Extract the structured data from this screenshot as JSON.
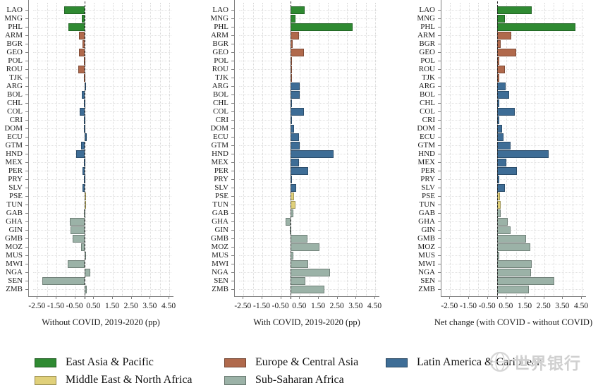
{
  "countries": [
    "LAO",
    "MNG",
    "PHL",
    "ARM",
    "BGR",
    "GEO",
    "POL",
    "ROU",
    "TJK",
    "ARG",
    "BOL",
    "CHL",
    "COL",
    "CRI",
    "DOM",
    "ECU",
    "GTM",
    "HND",
    "MEX",
    "PER",
    "PRY",
    "SLV",
    "PSE",
    "TUN",
    "GAB",
    "GHA",
    "GIN",
    "GMB",
    "MOZ",
    "MUS",
    "MWI",
    "NGA",
    "SEN",
    "ZMB"
  ],
  "country_regions": {
    "LAO": "eap",
    "MNG": "eap",
    "PHL": "eap",
    "ARM": "eca",
    "BGR": "eca",
    "GEO": "eca",
    "POL": "eca",
    "ROU": "eca",
    "TJK": "eca",
    "ARG": "lac",
    "BOL": "lac",
    "CHL": "lac",
    "COL": "lac",
    "CRI": "lac",
    "DOM": "lac",
    "ECU": "lac",
    "GTM": "lac",
    "HND": "lac",
    "MEX": "lac",
    "PER": "lac",
    "PRY": "lac",
    "SLV": "lac",
    "PSE": "mena",
    "TUN": "mena",
    "GAB": "ssa",
    "GHA": "ssa",
    "GIN": "ssa",
    "GMB": "ssa",
    "MOZ": "ssa",
    "MUS": "ssa",
    "MWI": "ssa",
    "NGA": "ssa",
    "SEN": "ssa",
    "ZMB": "ssa"
  },
  "region_colors": {
    "eap": "#2f8a32",
    "eca": "#b0694c",
    "lac": "#3e6d96",
    "mena": "#e0d07a",
    "ssa": "#9bb2a7"
  },
  "chart_data": [
    {
      "type": "bar",
      "orientation": "horizontal",
      "title": "Without COVID, 2019-2020 (pp)",
      "categories": [
        "LAO",
        "MNG",
        "PHL",
        "ARM",
        "BGR",
        "GEO",
        "POL",
        "ROU",
        "TJK",
        "ARG",
        "BOL",
        "CHL",
        "COL",
        "CRI",
        "DOM",
        "ECU",
        "GTM",
        "HND",
        "MEX",
        "PER",
        "PRY",
        "SLV",
        "PSE",
        "TUN",
        "GAB",
        "GHA",
        "GIN",
        "GMB",
        "MOZ",
        "MUS",
        "MWI",
        "NGA",
        "SEN",
        "ZMB"
      ],
      "values": [
        -1.1,
        -0.15,
        -0.85,
        -0.3,
        -0.1,
        -0.3,
        -0.05,
        -0.35,
        -0.05,
        0.05,
        -0.15,
        -0.05,
        -0.25,
        -0.05,
        -0.05,
        0.1,
        -0.2,
        -0.45,
        -0.05,
        -0.1,
        -0.05,
        -0.1,
        0.05,
        0.05,
        -0.05,
        -0.8,
        -0.75,
        -0.65,
        -0.2,
        0.05,
        -0.9,
        0.3,
        -2.25,
        0.1
      ],
      "xlim": [
        -2.95,
        4.75
      ],
      "grid": true,
      "zero_reference_line": true
    },
    {
      "type": "bar",
      "orientation": "horizontal",
      "title": "With COVID, 2019-2020 (pp)",
      "categories": [
        "LAO",
        "MNG",
        "PHL",
        "ARM",
        "BGR",
        "GEO",
        "POL",
        "ROU",
        "TJK",
        "ARG",
        "BOL",
        "CHL",
        "COL",
        "CRI",
        "DOM",
        "ECU",
        "GTM",
        "HND",
        "MEX",
        "PER",
        "PRY",
        "SLV",
        "PSE",
        "TUN",
        "GAB",
        "GHA",
        "GIN",
        "GMB",
        "MOZ",
        "MUS",
        "MWI",
        "NGA",
        "SEN",
        "ZMB"
      ],
      "values": [
        0.75,
        0.25,
        3.3,
        0.45,
        0.1,
        0.7,
        0.05,
        0.05,
        0.05,
        0.5,
        0.5,
        0.05,
        0.7,
        0.05,
        0.2,
        0.45,
        0.5,
        2.3,
        0.45,
        0.95,
        0.05,
        0.3,
        0.2,
        0.25,
        0.15,
        -0.25,
        -0.05,
        0.9,
        1.55,
        0.15,
        0.95,
        2.1,
        0.8,
        1.8
      ],
      "xlim": [
        -2.95,
        4.75
      ],
      "grid": true,
      "zero_reference_line": true
    },
    {
      "type": "bar",
      "orientation": "horizontal",
      "title": "Net change (with COVID - without COVID)",
      "categories": [
        "LAO",
        "MNG",
        "PHL",
        "ARM",
        "BGR",
        "GEO",
        "POL",
        "ROU",
        "TJK",
        "ARG",
        "BOL",
        "CHL",
        "COL",
        "CRI",
        "DOM",
        "ECU",
        "GTM",
        "HND",
        "MEX",
        "PER",
        "PRY",
        "SLV",
        "PSE",
        "TUN",
        "GAB",
        "GHA",
        "GIN",
        "GMB",
        "MOZ",
        "MUS",
        "MWI",
        "NGA",
        "SEN",
        "ZMB"
      ],
      "values": [
        1.85,
        0.4,
        4.15,
        0.75,
        0.2,
        1.0,
        0.1,
        0.4,
        0.1,
        0.45,
        0.65,
        0.1,
        0.95,
        0.1,
        0.25,
        0.35,
        0.7,
        2.75,
        0.5,
        1.05,
        0.1,
        0.4,
        0.15,
        0.2,
        0.2,
        0.55,
        0.7,
        1.55,
        1.75,
        0.1,
        1.85,
        1.8,
        3.05,
        1.7
      ],
      "xlim": [
        -2.95,
        4.75
      ],
      "grid": true,
      "zero_reference_line": true
    }
  ],
  "axis": {
    "ticks": [
      {
        "label": "-2.50",
        "value": -2.5
      },
      {
        "label": "-1.50",
        "value": -1.5
      },
      {
        "label": "-0.50",
        "value": -0.5
      },
      {
        "label": "0.50",
        "value": 0.5
      },
      {
        "label": "1.50",
        "value": 1.5
      },
      {
        "label": "2.50",
        "value": 2.5
      },
      {
        "label": "3.50",
        "value": 3.5
      },
      {
        "label": "4.50",
        "value": 4.5
      }
    ],
    "gridline_step": 0.5
  },
  "legend": {
    "items": [
      {
        "label": "East Asia & Pacific",
        "region": "eap",
        "row": 0,
        "col": 0
      },
      {
        "label": "Europe & Central Asia",
        "region": "eca",
        "row": 0,
        "col": 1
      },
      {
        "label": "Latin America & Caribbean",
        "region": "lac",
        "row": 0,
        "col": 2
      },
      {
        "label": "Middle East & North Africa",
        "region": "mena",
        "row": 1,
        "col": 0
      },
      {
        "label": "Sub-Saharan Africa",
        "region": "ssa",
        "row": 1,
        "col": 1
      }
    ]
  },
  "watermark": {
    "text": "世界银行"
  }
}
